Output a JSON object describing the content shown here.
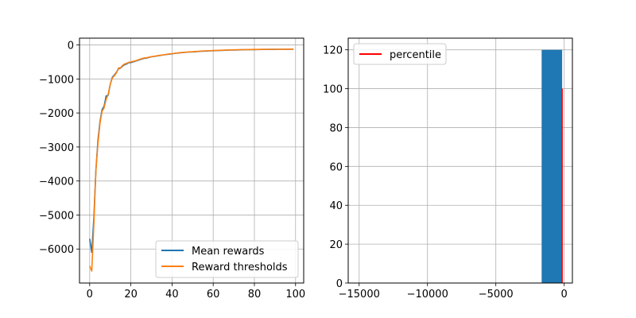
{
  "chart_data": [
    {
      "type": "line",
      "title": "",
      "xlabel": "",
      "ylabel": "",
      "xlim": [
        -4.95,
        103.95
      ],
      "ylim": [
        -7000,
        200
      ],
      "grid": true,
      "legend_position": "bottom-right",
      "xticks": [
        0,
        20,
        40,
        60,
        80,
        100
      ],
      "xtick_labels": [
        "0",
        "20",
        "40",
        "60",
        "80",
        "100"
      ],
      "yticks": [
        0,
        -1000,
        -2000,
        -3000,
        -4000,
        -5000,
        -6000
      ],
      "ytick_labels": [
        "0",
        "−1000",
        "−2000",
        "−3000",
        "−4000",
        "−5000",
        "−6000"
      ],
      "series": [
        {
          "name": "Mean rewards",
          "color": "#1f77b4",
          "x": [
            0,
            1,
            2,
            3,
            4,
            5,
            6,
            7,
            8,
            9,
            10,
            11,
            12,
            13,
            14,
            15,
            16,
            17,
            18,
            19,
            20,
            22,
            24,
            26,
            28,
            30,
            32,
            34,
            36,
            38,
            40,
            42,
            44,
            46,
            48,
            50,
            52,
            54,
            56,
            58,
            60,
            62,
            64,
            66,
            68,
            70,
            72,
            74,
            76,
            78,
            80,
            82,
            84,
            86,
            88,
            90,
            92,
            94,
            96,
            98,
            99
          ],
          "y": [
            -5700,
            -6100,
            -5100,
            -3700,
            -2800,
            -2250,
            -1900,
            -1800,
            -1500,
            -1480,
            -1150,
            -950,
            -880,
            -800,
            -700,
            -680,
            -620,
            -580,
            -560,
            -520,
            -520,
            -480,
            -440,
            -400,
            -380,
            -350,
            -330,
            -310,
            -290,
            -275,
            -260,
            -245,
            -230,
            -220,
            -210,
            -205,
            -195,
            -185,
            -180,
            -175,
            -170,
            -165,
            -160,
            -155,
            -150,
            -148,
            -145,
            -142,
            -140,
            -138,
            -136,
            -134,
            -132,
            -131,
            -130,
            -129,
            -128,
            -127,
            -126,
            -125,
            -125
          ]
        },
        {
          "name": "Reward thresholds",
          "color": "#ff7f0e",
          "x": [
            0,
            1,
            2,
            3,
            4,
            5,
            6,
            7,
            8,
            9,
            10,
            11,
            12,
            13,
            14,
            15,
            16,
            17,
            18,
            19,
            20,
            22,
            24,
            26,
            28,
            30,
            32,
            34,
            36,
            38,
            40,
            42,
            44,
            46,
            48,
            50,
            52,
            54,
            56,
            58,
            60,
            62,
            64,
            66,
            68,
            70,
            72,
            74,
            76,
            78,
            80,
            82,
            84,
            86,
            88,
            90,
            92,
            94,
            96,
            98,
            99
          ],
          "y": [
            -6500,
            -6650,
            -5300,
            -3700,
            -2900,
            -2300,
            -1950,
            -1850,
            -1600,
            -1450,
            -1150,
            -970,
            -900,
            -820,
            -680,
            -670,
            -600,
            -560,
            -540,
            -510,
            -500,
            -470,
            -430,
            -390,
            -370,
            -345,
            -325,
            -305,
            -290,
            -270,
            -255,
            -240,
            -225,
            -215,
            -205,
            -200,
            -190,
            -180,
            -175,
            -170,
            -165,
            -160,
            -155,
            -150,
            -146,
            -144,
            -141,
            -139,
            -137,
            -135,
            -133,
            -131,
            -130,
            -129,
            -128,
            -127,
            -126,
            -125,
            -124,
            -123,
            -123
          ]
        }
      ]
    },
    {
      "type": "histogram",
      "title": "",
      "xlabel": "",
      "ylabel": "",
      "xlim": [
        -15800,
        600
      ],
      "ylim": [
        0,
        126
      ],
      "grid": true,
      "legend_position": "top-left",
      "xticks": [
        -15000,
        -10000,
        -5000,
        0
      ],
      "xtick_labels": [
        "−15000",
        "−10000",
        "−5000",
        "0"
      ],
      "yticks": [
        0,
        20,
        40,
        60,
        80,
        100,
        120
      ],
      "ytick_labels": [
        "0",
        "20",
        "40",
        "60",
        "80",
        "100",
        "120"
      ],
      "bars": [
        {
          "x0": -1650,
          "x1": -150,
          "value": 120
        }
      ],
      "bar_color": "#1f77b4",
      "percentile_line": {
        "name": "percentile",
        "x": -150,
        "y0": 0,
        "y1": 100,
        "color": "#ff0000"
      }
    }
  ]
}
